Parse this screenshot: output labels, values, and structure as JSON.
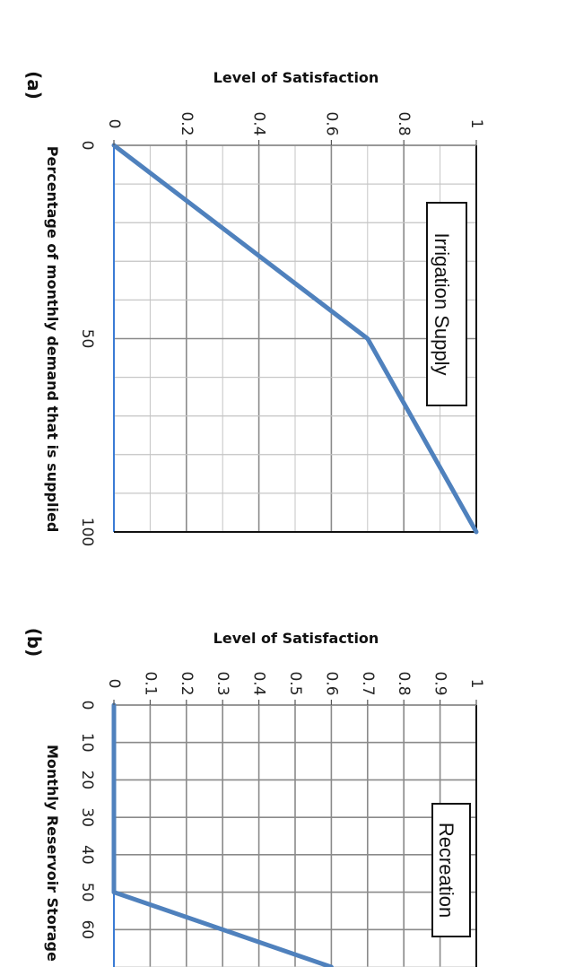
{
  "chart_data": [
    {
      "panel": "(a)",
      "type": "line",
      "title": "Irrigation Supply",
      "xlabel": "Percentage of monthly demand that is supplied",
      "ylabel": "Level of Satisfaction",
      "xlim": [
        0,
        100
      ],
      "ylim": [
        0,
        1
      ],
      "x_ticks": [
        0,
        50,
        100
      ],
      "y_ticks": [
        0,
        0.2,
        0.4,
        0.6,
        0.8,
        1
      ],
      "x_tick_labels": [
        "0",
        "50",
        "100"
      ],
      "y_tick_labels": [
        "0",
        "0.2",
        "0.4",
        "0.6",
        "0.8",
        "1"
      ],
      "minor_x_step": 10,
      "minor_y_step": 0.1,
      "grid": true,
      "line_color": "#4f81bd",
      "series": [
        {
          "x": [
            0,
            50,
            100
          ],
          "y": [
            0,
            0.7,
            1
          ]
        }
      ]
    },
    {
      "panel": "(b)",
      "type": "line",
      "title": "Recreation",
      "xlabel": "Monthly Reservoir Storage",
      "ylabel": "Level of Satisfaction",
      "xlim": [
        0,
        70
      ],
      "ylim": [
        0,
        1
      ],
      "x_ticks": [
        0,
        10,
        20,
        30,
        40,
        50,
        60
      ],
      "y_ticks": [
        0,
        0.1,
        0.2,
        0.3,
        0.4,
        0.5,
        0.6,
        0.7,
        0.8,
        0.9,
        1
      ],
      "x_tick_labels": [
        "0",
        "10",
        "20",
        "30",
        "40",
        "50",
        "60"
      ],
      "y_tick_labels": [
        "0",
        "0.1",
        "0.2",
        "0.3",
        "0.4",
        "0.5",
        "0.6",
        "0.7",
        "0.8",
        "0.9",
        "1"
      ],
      "minor_x_step": 10,
      "minor_y_step": 0.1,
      "grid": true,
      "line_color": "#4f81bd",
      "series": [
        {
          "x": [
            0,
            50,
            70
          ],
          "y": [
            0,
            0,
            0.6
          ]
        }
      ]
    }
  ]
}
